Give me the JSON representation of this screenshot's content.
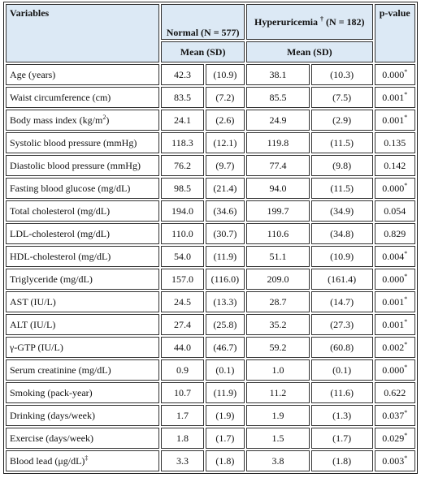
{
  "header": {
    "variables": "Variables",
    "normal": "Normal (N = 577)",
    "hyper": "Hyperuricemia",
    "hyper_mark": "†",
    "hyper_n": "(N = 182)",
    "p_value": "p-value",
    "normal_sub": "Mean (SD)",
    "hyper_sub": "Mean (SD)"
  },
  "rows": [
    {
      "variable": "Age (years)",
      "normal_mean": "42.3",
      "normal_sd": "(10.9)",
      "hyper_mean": "38.1",
      "hyper_sd": "(10.3)",
      "p": "0.000",
      "p_mark": "*"
    },
    {
      "variable": "Waist circumference (cm)",
      "normal_mean": "83.5",
      "normal_sd": "(7.2)",
      "hyper_mean": "85.5",
      "hyper_sd": "(7.5)",
      "p": "0.001",
      "p_mark": "*"
    },
    {
      "variable": "Body mass index (kg/m",
      "variable_sup": "2",
      "variable_end": ")",
      "normal_mean": "24.1",
      "normal_sd": "(2.6)",
      "hyper_mean": "24.9",
      "hyper_sd": "(2.9)",
      "p": "0.001",
      "p_mark": "*"
    },
    {
      "variable": "Systolic blood pressure (mmHg)",
      "normal_mean": "118.3",
      "normal_sd": "(12.1)",
      "hyper_mean": "119.8",
      "hyper_sd": "(11.5)",
      "p": "0.135"
    },
    {
      "variable": "Diastolic blood pressure (mmHg)",
      "normal_mean": "76.2",
      "normal_sd": "(9.7)",
      "hyper_mean": "77.4",
      "hyper_sd": "(9.8)",
      "p": "0.142"
    },
    {
      "variable": "Fasting blood glucose (mg/dL)",
      "normal_mean": "98.5",
      "normal_sd": "(21.4)",
      "hyper_mean": "94.0",
      "hyper_sd": "(11.5)",
      "p": "0.000",
      "p_mark": "*"
    },
    {
      "variable": "Total cholesterol (mg/dL)",
      "normal_mean": "194.0",
      "normal_sd": "(34.6)",
      "hyper_mean": "199.7",
      "hyper_sd": "(34.9)",
      "p": "0.054"
    },
    {
      "variable": "LDL-cholesterol (mg/dL)",
      "normal_mean": "110.0",
      "normal_sd": "(30.7)",
      "hyper_mean": "110.6",
      "hyper_sd": "(34.8)",
      "p": "0.829"
    },
    {
      "variable": "HDL-cholesterol (mg/dL)",
      "normal_mean": "54.0",
      "normal_sd": "(11.9)",
      "hyper_mean": "51.1",
      "hyper_sd": "(10.9)",
      "p": "0.004",
      "p_mark": "*"
    },
    {
      "variable": "Triglyceride (mg/dL)",
      "normal_mean": "157.0",
      "normal_sd": "(116.0)",
      "hyper_mean": "209.0",
      "hyper_sd": "(161.4)",
      "p": "0.000",
      "p_mark": "*"
    },
    {
      "variable": "AST (IU/L)",
      "normal_mean": "24.5",
      "normal_sd": "(13.3)",
      "hyper_mean": "28.7",
      "hyper_sd": "(14.7)",
      "p": "0.001",
      "p_mark": "*"
    },
    {
      "variable": "ALT (IU/L)",
      "normal_mean": "27.4",
      "normal_sd": "(25.8)",
      "hyper_mean": "35.2",
      "hyper_sd": "(27.3)",
      "p": "0.001",
      "p_mark": "*"
    },
    {
      "variable": "γ-GTP (IU/L)",
      "normal_mean": "44.0",
      "normal_sd": "(46.7)",
      "hyper_mean": "59.2",
      "hyper_sd": "(60.8)",
      "p": "0.002",
      "p_mark": "*"
    },
    {
      "variable": "Serum creatinine (mg/dL)",
      "normal_mean": "0.9",
      "normal_sd": "(0.1)",
      "hyper_mean": "1.0",
      "hyper_sd": "(0.1)",
      "p": "0.000",
      "p_mark": "*"
    },
    {
      "variable": "Smoking (pack-year)",
      "normal_mean": "10.7",
      "normal_sd": "(11.9)",
      "hyper_mean": "11.2",
      "hyper_sd": "(11.6)",
      "p": "0.622"
    },
    {
      "variable": "Drinking (days/week)",
      "normal_mean": "1.7",
      "normal_sd": "(1.9)",
      "hyper_mean": "1.9",
      "hyper_sd": "(1.3)",
      "p": "0.037",
      "p_mark": "*"
    },
    {
      "variable": "Exercise (days/week)",
      "normal_mean": "1.8",
      "normal_sd": "(1.7)",
      "hyper_mean": "1.5",
      "hyper_sd": "(1.7)",
      "p": "0.029",
      "p_mark": "*"
    },
    {
      "variable": "Blood lead (μg/dL)",
      "variable_sup": "‡",
      "normal_mean": "3.3",
      "normal_sd": "(1.8)",
      "hyper_mean": "3.8",
      "hyper_sd": "(1.8)",
      "p": "0.003",
      "p_mark": "*"
    }
  ]
}
